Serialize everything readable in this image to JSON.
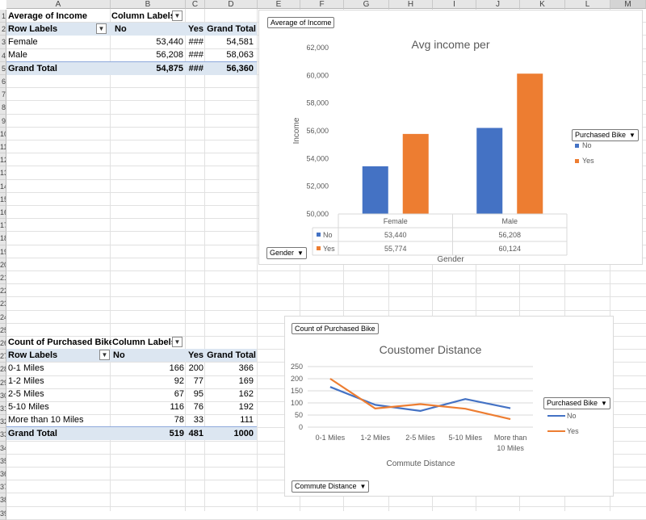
{
  "columns": [
    "A",
    "B",
    "C",
    "D",
    "E",
    "F",
    "G",
    "H",
    "I",
    "J",
    "K",
    "L",
    "M"
  ],
  "rows": [
    "1",
    "2",
    "3",
    "4",
    "5",
    "6",
    "7",
    "8",
    "9",
    "10",
    "11",
    "12",
    "13",
    "14",
    "15",
    "16",
    "17",
    "18",
    "19",
    "20",
    "21",
    "22",
    "23",
    "24",
    "25",
    "26",
    "27",
    "28",
    "29",
    "30",
    "31",
    "32",
    "33",
    "34",
    "35",
    "36",
    "37",
    "38",
    "39"
  ],
  "pivot1": {
    "title": "Average of Income",
    "column_labels": "Column Labels",
    "row_labels": "Row Labels",
    "col_no": "No",
    "col_yes": "Yes",
    "col_grand": "Grand Total",
    "rows": [
      {
        "label": "Female",
        "no": "53,440",
        "yes": "###",
        "grand": "54,581"
      },
      {
        "label": "Male",
        "no": "56,208",
        "yes": "###",
        "grand": "58,063"
      }
    ],
    "total": {
      "label": "Grand Total",
      "no": "54,875",
      "yes": "###",
      "grand": "56,360"
    }
  },
  "pivot2": {
    "title": "Count of Purchased Bike",
    "column_labels": "Column Labels",
    "row_labels": "Row Labels",
    "col_no": "No",
    "col_yes": "Yes",
    "col_grand": "Grand Total",
    "rows": [
      {
        "label": "0-1 Miles",
        "no": "166",
        "yes": "200",
        "grand": "366"
      },
      {
        "label": "1-2 Miles",
        "no": "92",
        "yes": "77",
        "grand": "169"
      },
      {
        "label": "2-5 Miles",
        "no": "67",
        "yes": "95",
        "grand": "162"
      },
      {
        "label": "5-10 Miles",
        "no": "116",
        "yes": "76",
        "grand": "192"
      },
      {
        "label": "More than 10 Miles",
        "no": "78",
        "yes": "33",
        "grand": "111"
      }
    ],
    "total": {
      "label": "Grand Total",
      "no": "519",
      "yes": "481",
      "grand": "1000"
    }
  },
  "chart1_ui": {
    "value_button": "Average of Income",
    "legend_button": "Purchased Bike",
    "axis_button": "Gender"
  },
  "chart2_ui": {
    "value_button": "Count of Purchased Bike",
    "legend_button": "Purchased Bike",
    "axis_button": "Commute Distance"
  },
  "chart_data": [
    {
      "type": "bar",
      "title": "Avg income per",
      "xlabel": "Gender",
      "ylabel": "Income",
      "categories": [
        "Female",
        "Male"
      ],
      "series": [
        {
          "name": "No",
          "values": [
            53440,
            56208
          ],
          "labels": [
            "53,440",
            "56,208"
          ],
          "color": "#4472c4"
        },
        {
          "name": "Yes",
          "values": [
            55774,
            60124
          ],
          "labels": [
            "55,774",
            "60,124"
          ],
          "color": "#ed7d31"
        }
      ],
      "ylim": [
        50000,
        62000
      ],
      "yticks": [
        "50,000",
        "52,000",
        "54,000",
        "56,000",
        "58,000",
        "60,000",
        "62,000"
      ],
      "grid": false,
      "legend": "right",
      "data_table": true
    },
    {
      "type": "line",
      "title": "Coustomer Distance",
      "xlabel": "Commute Distance",
      "ylabel": "",
      "categories": [
        "0-1 Miles",
        "1-2 Miles",
        "2-5 Miles",
        "5-10 Miles",
        "More than 10 Miles"
      ],
      "series": [
        {
          "name": "No",
          "values": [
            166,
            92,
            67,
            116,
            78
          ],
          "color": "#4472c4"
        },
        {
          "name": "Yes",
          "values": [
            200,
            77,
            95,
            76,
            33
          ],
          "color": "#ed7d31"
        }
      ],
      "ylim": [
        0,
        250
      ],
      "yticks": [
        "0",
        "50",
        "100",
        "150",
        "200",
        "250"
      ],
      "grid": true,
      "legend": "right"
    }
  ]
}
